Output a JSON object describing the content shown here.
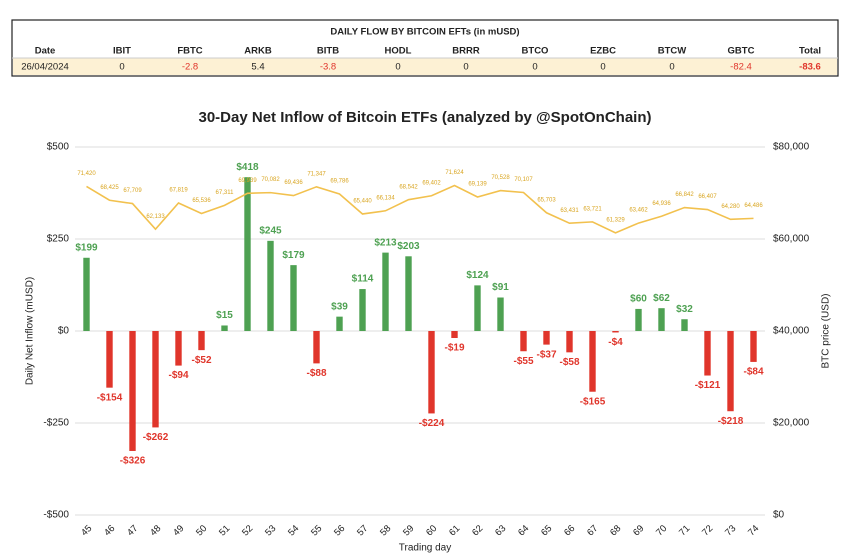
{
  "table": {
    "title": "DAILY FLOW BY BITCOIN EFTs (in mUSD)",
    "columns": [
      "Date",
      "IBIT",
      "FBTC",
      "ARKB",
      "BITB",
      "HODL",
      "BRRR",
      "BTCO",
      "EZBC",
      "BTCW",
      "GBTC",
      "Total"
    ],
    "rows": [
      [
        "26/04/2024",
        0,
        -2.8,
        5.4,
        -3.8,
        0,
        0,
        0,
        0,
        0,
        -82.4,
        -83.6
      ]
    ]
  },
  "chart_data": {
    "type": "combo",
    "title": "30-Day Net Inflow of Bitcoin ETFs (analyzed by @SpotOnChain)",
    "x_label": "Trading day",
    "y_label": "Daily Net Inflow (mUSD)",
    "y2_label": "BTC price (USD)",
    "categories": [
      "45",
      "46",
      "47",
      "48",
      "49",
      "50",
      "51",
      "52",
      "53",
      "54",
      "55",
      "56",
      "57",
      "58",
      "59",
      "60",
      "61",
      "62",
      "63",
      "64",
      "65",
      "66",
      "67",
      "68",
      "69",
      "70",
      "71",
      "72",
      "73",
      "74"
    ],
    "ylim": [
      -500,
      500
    ],
    "yticks": [
      {
        "value": -500,
        "label": "-$500"
      },
      {
        "value": -250,
        "label": "-$250"
      },
      {
        "value": 0,
        "label": "$0"
      },
      {
        "value": 250,
        "label": "$250"
      },
      {
        "value": 500,
        "label": "$500"
      }
    ],
    "y2lim": [
      0,
      80000
    ],
    "y2ticks": [
      {
        "value": 0,
        "label": "$0"
      },
      {
        "value": 20000,
        "label": "$20,000"
      },
      {
        "value": 40000,
        "label": "$40,000"
      },
      {
        "value": 60000,
        "label": "$60,000"
      },
      {
        "value": 80000,
        "label": "$80,000"
      }
    ],
    "grid": true,
    "series": [
      {
        "type": "bar",
        "color": "#4ea152",
        "negative_color": "#e0352b",
        "values": [
          199,
          -154,
          -326,
          -262,
          -94,
          -52,
          15,
          418,
          245,
          179,
          -88,
          39,
          114,
          213,
          203,
          -224,
          -19,
          124,
          91,
          -55,
          -37,
          -58,
          -165,
          -4,
          60,
          62,
          32,
          -121,
          -218,
          -84
        ],
        "value_labels": [
          "$199",
          "-$154",
          "-$326",
          "-$262",
          "-$94",
          "-$52",
          "$15",
          "$418",
          "$245",
          "$179",
          "-$88",
          "$39",
          "$114",
          "$213",
          "$203",
          "-$224",
          "-$19",
          "$124",
          "$91",
          "-$55",
          "-$37",
          "-$58",
          "-$165",
          "-$4",
          "$60",
          "$62",
          "$32",
          "-$121",
          "-$218",
          "-$84"
        ]
      },
      {
        "type": "line",
        "axis": "y2",
        "color": "#f2c14e",
        "values": [
          71420,
          68425,
          67709,
          62133,
          67819,
          65536,
          67311,
          69939,
          70082,
          69436,
          71347,
          69786,
          65440,
          66134,
          68542,
          69402,
          71624,
          69139,
          70528,
          70107,
          65703,
          63431,
          63721,
          61329,
          63462,
          64936,
          66842,
          66407,
          64280,
          64486
        ],
        "value_labels": [
          "71,420",
          "68,425",
          "67,709",
          "62,133",
          "67,819",
          "65,536",
          "67,311",
          "69,939",
          "70,082",
          "69,436",
          "71,347",
          "69,786",
          "65,440",
          "66,134",
          "68,542",
          "69,402",
          "71,624",
          "69,139",
          "70,528",
          "70,107",
          "65,703",
          "63,431",
          "63,721",
          "61,329",
          "63,462",
          "64,936",
          "66,842",
          "66,407",
          "64,280",
          "64,486"
        ]
      }
    ]
  }
}
